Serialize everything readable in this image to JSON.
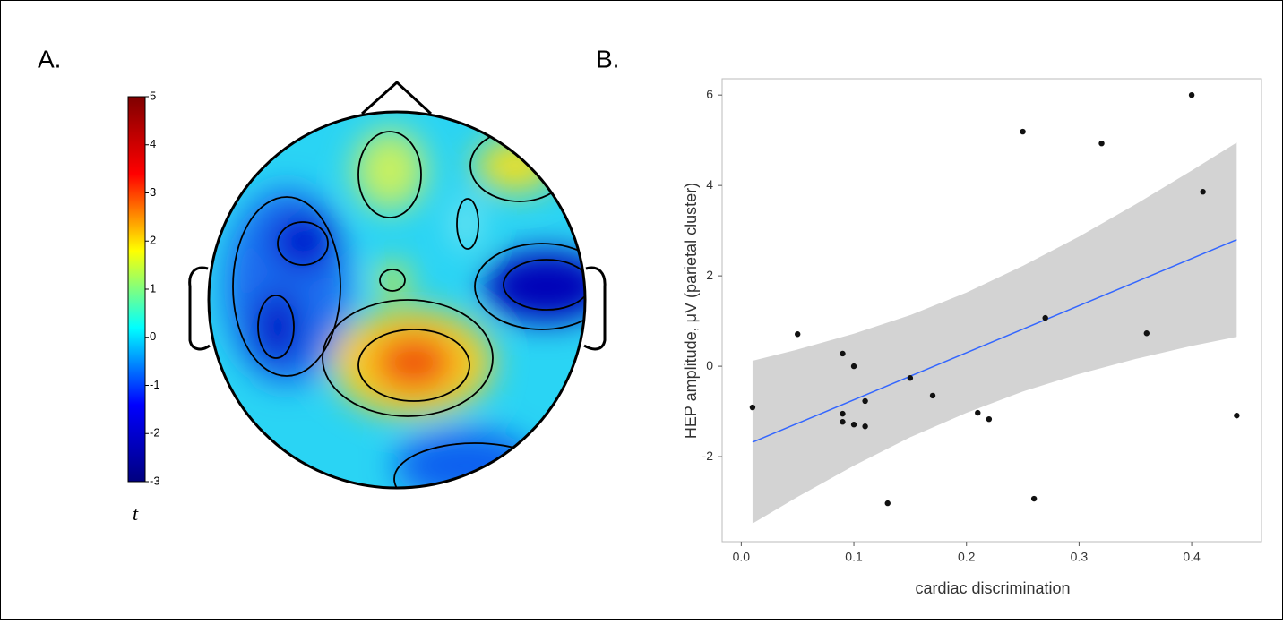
{
  "chart_data": [
    {
      "type": "topomap",
      "panel_label": "A.",
      "colorbar_label": "t",
      "clim": [
        -3,
        5
      ],
      "cticks": [
        -3,
        -2,
        -1,
        0,
        1,
        2,
        3,
        4,
        5
      ],
      "colormap": [
        "#00007f",
        "#0000ff",
        "#00ffff",
        "#ffff00",
        "#ff0000",
        "#7f0000"
      ]
    },
    {
      "type": "scatter",
      "panel_label": "B.",
      "xlabel": "cardiac discrimination",
      "ylabel": "HEP amplitude, μV (parietal cluster)",
      "xlim": [
        -0.017,
        0.462
      ],
      "ylim": [
        -3.88,
        6.36
      ],
      "xticks": [
        {
          "value": 0,
          "label": "0.0"
        },
        0.1,
        0.2,
        0.3,
        0.4
      ],
      "yticks": [
        -2,
        0,
        2,
        4,
        6
      ],
      "points": {
        "color": "#111111",
        "x": [
          0.01,
          0.05,
          0.09,
          0.1,
          0.09,
          0.09,
          0.1,
          0.11,
          0.11,
          0.15,
          0.17,
          0.21,
          0.22,
          0.13,
          0.25,
          0.26,
          0.27,
          0.32,
          0.36,
          0.4,
          0.41,
          0.44
        ],
        "y": [
          -0.91,
          0.71,
          0.28,
          0.0,
          -1.05,
          -1.23,
          -1.29,
          -0.77,
          -1.33,
          -0.26,
          -0.65,
          -1.03,
          -1.17,
          -3.03,
          5.19,
          -2.93,
          1.07,
          4.93,
          0.73,
          6.0,
          3.86,
          -1.09
        ]
      },
      "fit": {
        "color": "#3366ff",
        "x": [
          0.01,
          0.44
        ],
        "y": [
          -1.68,
          2.8
        ]
      },
      "band": {
        "color": "#d3d3d3",
        "x": [
          0.01,
          0.05,
          0.1,
          0.15,
          0.2,
          0.25,
          0.3,
          0.35,
          0.4,
          0.44
        ],
        "lower": [
          -3.48,
          -2.89,
          -2.2,
          -1.57,
          -1.03,
          -0.56,
          -0.17,
          0.16,
          0.45,
          0.65
        ],
        "upper": [
          0.12,
          0.37,
          0.72,
          1.13,
          1.63,
          2.22,
          2.87,
          3.58,
          4.33,
          4.95
        ]
      }
    }
  ]
}
